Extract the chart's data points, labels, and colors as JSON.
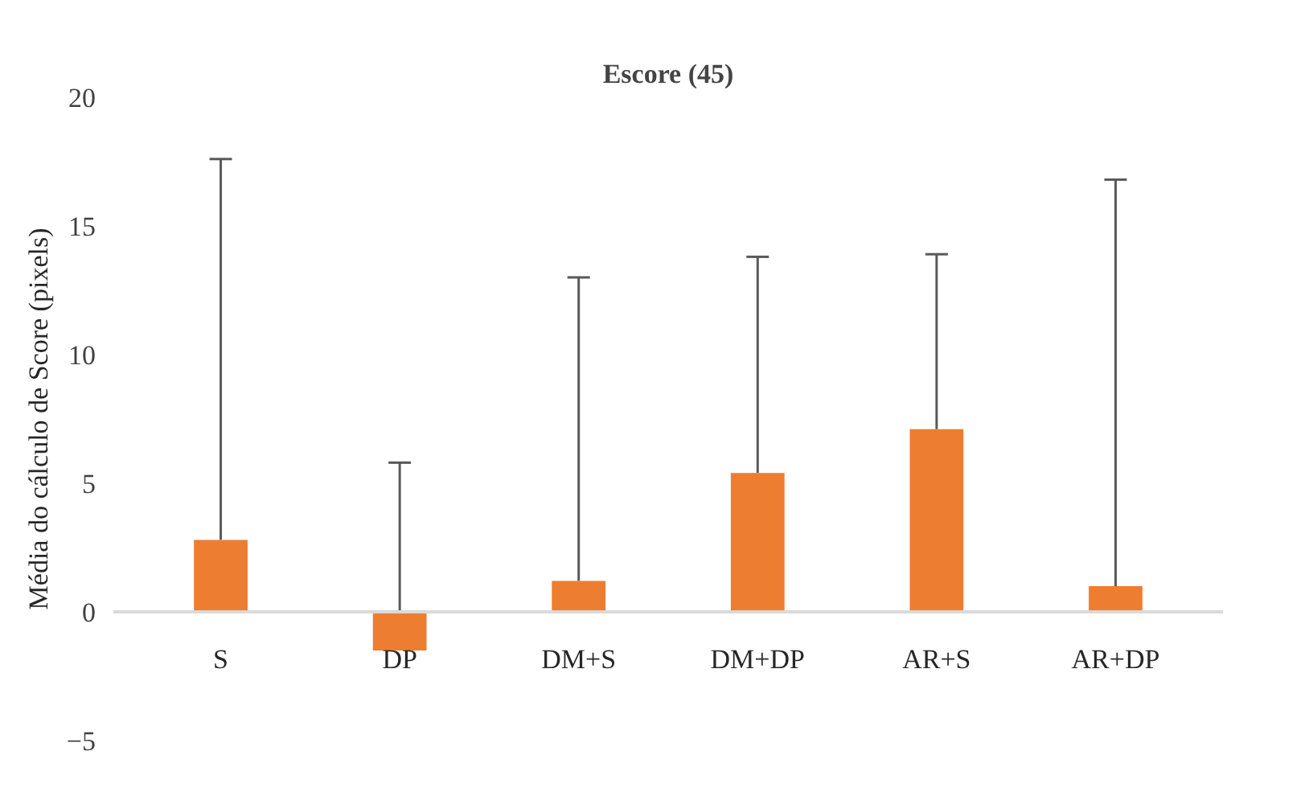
{
  "chart_data": {
    "type": "bar",
    "title": "Escore (45)",
    "ylabel": "Média do cálculo de Score (pixels)",
    "categories": [
      "S",
      "DP",
      "DM+S",
      "DM+DP",
      "AR+S",
      "AR+DP"
    ],
    "values": [
      2.8,
      -1.5,
      1.2,
      5.4,
      7.1,
      1.0
    ],
    "errors": [
      [
        2.8,
        17.6
      ],
      [
        -1.5,
        5.8
      ],
      [
        1.2,
        13.0
      ],
      [
        5.4,
        13.8
      ],
      [
        7.1,
        13.9
      ],
      [
        1.0,
        16.8
      ]
    ],
    "color": "#ed7d31",
    "ylim": [
      -5,
      20
    ],
    "yticks": [
      -5,
      0,
      5,
      10,
      15,
      20
    ],
    "grid": false
  }
}
